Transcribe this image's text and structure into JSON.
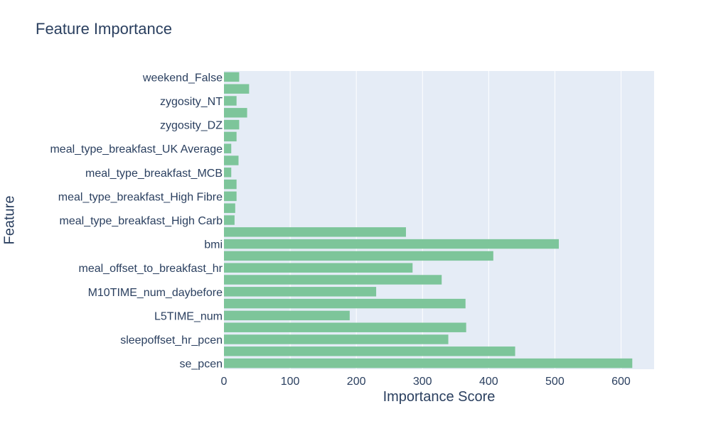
{
  "chart_data": {
    "type": "bar",
    "orientation": "horizontal",
    "title": "Feature Importance",
    "xlabel": "Importance Score",
    "ylabel": "Feature",
    "xlim": [
      0,
      650
    ],
    "xticks": [
      0,
      100,
      200,
      300,
      400,
      500,
      600
    ],
    "grid": true,
    "bar_color": "#7dc59a",
    "plot_background": "#e5ecf6",
    "categories": [
      "weekend_False",
      "",
      "zygosity_NT",
      "",
      "zygosity_DZ",
      "",
      "meal_type_breakfast_UK Average",
      "",
      "meal_type_breakfast_MCB",
      "",
      "meal_type_breakfast_High Fibre",
      "",
      "meal_type_breakfast_High Carb",
      "",
      "bmi",
      "",
      "meal_offset_to_breakfast_hr",
      "",
      "M10TIME_num_daybefore",
      "",
      "L5TIME_num",
      "",
      "sleepoffset_hr_pcen",
      "",
      "se_pcen"
    ],
    "values": [
      23,
      38,
      19,
      35,
      23,
      19,
      11,
      22,
      11,
      19,
      19,
      17,
      16,
      275,
      506,
      407,
      285,
      329,
      230,
      365,
      190,
      366,
      339,
      440,
      617
    ]
  }
}
